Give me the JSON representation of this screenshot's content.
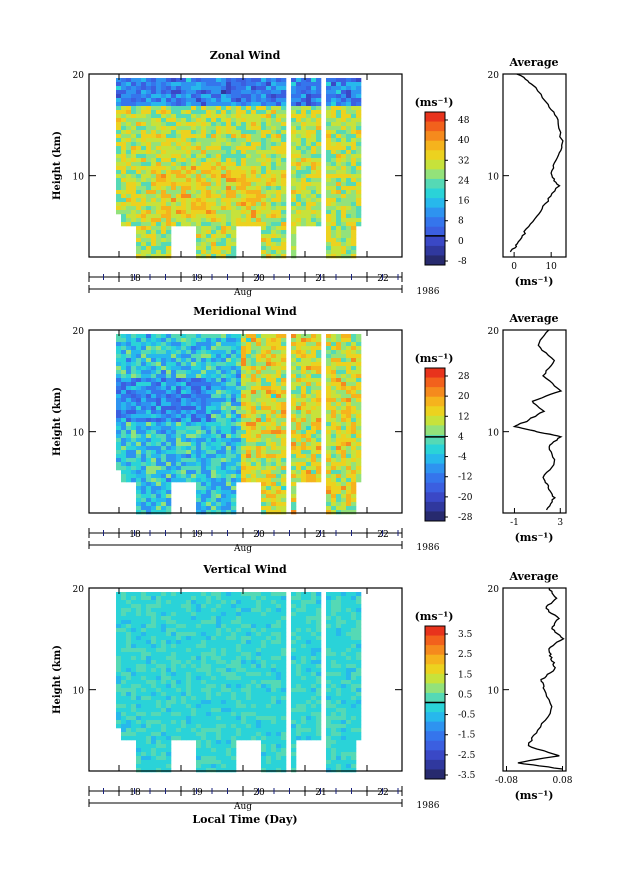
{
  "time_axis": {
    "label": "Aug",
    "year": "1986",
    "ticks": [
      "18",
      "19",
      "20",
      "21",
      "22"
    ]
  },
  "xaxis_title": "Local Time (Day)",
  "average_title": "Average",
  "chart_data": [
    {
      "type": "heatmap",
      "title": "Zonal Wind",
      "ylabel": "Height (km)",
      "ylim": [
        2,
        20
      ],
      "yticks": [
        "20",
        "10"
      ],
      "unit_label": "(ms⁻¹)",
      "colorbar": {
        "ticks": [
          "48",
          "40",
          "32",
          "24",
          "16",
          "8",
          "0",
          "-8"
        ],
        "colors": [
          "#e8331c",
          "#f2611c",
          "#f58a1d",
          "#f5b31d",
          "#ecd21f",
          "#c7e23b",
          "#93e27a",
          "#55d9b5",
          "#2ad3d8",
          "#27b8ec",
          "#2e93f0",
          "#3575ec",
          "#3b5fe0",
          "#3a48c6",
          "#30389e",
          "#272a6e"
        ],
        "zero_frac": 0.81
      },
      "base_value": 0.36,
      "variability": 0.12,
      "top_dark": true,
      "average_profile": {
        "x": [
          1,
          5,
          9,
          12,
          13,
          11,
          10,
          12,
          9,
          6,
          3,
          1,
          -1
        ],
        "y": [
          20,
          19,
          17,
          15.5,
          13,
          11.5,
          10,
          9,
          7.5,
          6,
          4.5,
          3.3,
          2.5
        ],
        "xticks": [
          "0",
          "10"
        ],
        "xlim": [
          -3,
          14
        ]
      }
    },
    {
      "type": "heatmap",
      "title": "Meridional Wind",
      "ylabel": "Height (km)",
      "ylim": [
        2,
        20
      ],
      "yticks": [
        "20",
        "10"
      ],
      "unit_label": "(ms⁻¹)",
      "colorbar": {
        "ticks": [
          "28",
          "20",
          "12",
          "4",
          "-4",
          "-12",
          "-20",
          "-28"
        ],
        "colors": [
          "#e8331c",
          "#f2611c",
          "#f58a1d",
          "#f5b31d",
          "#ecd21f",
          "#c7e23b",
          "#93e27a",
          "#55d9b5",
          "#2ad3d8",
          "#27b8ec",
          "#2e93f0",
          "#3575ec",
          "#3b5fe0",
          "#3a48c6",
          "#30389e",
          "#272a6e"
        ],
        "zero_frac": 0.45
      },
      "base_value": 0.55,
      "variability": 0.14,
      "top_dark": false,
      "east_warm": true,
      "average_profile": {
        "x": [
          2,
          1,
          2.5,
          1.5,
          3,
          0.5,
          1.5,
          0,
          -1,
          1,
          3,
          2,
          2.5,
          1.5,
          2,
          2.5,
          1.8
        ],
        "y": [
          20,
          18.5,
          17,
          15.5,
          14,
          13,
          12,
          11,
          10.5,
          10,
          9.5,
          8.5,
          7,
          5.5,
          4.5,
          3.5,
          2.3
        ],
        "xticks": [
          "-1",
          "3"
        ],
        "xlim": [
          -2,
          3.5
        ]
      }
    },
    {
      "type": "heatmap",
      "title": "Vertical Wind",
      "ylabel": "Height (km)",
      "ylim": [
        2,
        20
      ],
      "yticks": [
        "20",
        "10"
      ],
      "unit_label": "(ms⁻¹)",
      "colorbar": {
        "ticks": [
          "3.5",
          "2.5",
          "1.5",
          "0.5",
          "-0.5",
          "-1.5",
          "-2.5",
          "-3.5"
        ],
        "colors": [
          "#e8331c",
          "#f2611c",
          "#f58a1d",
          "#f5b31d",
          "#ecd21f",
          "#c7e23b",
          "#93e27a",
          "#55d9b5",
          "#2ad3d8",
          "#27b8ec",
          "#2e93f0",
          "#3575ec",
          "#3b5fe0",
          "#3a48c6",
          "#30389e",
          "#272a6e"
        ],
        "zero_frac": 0.5
      },
      "base_value": 0.52,
      "variability": 0.05,
      "top_dark": false,
      "average_profile": {
        "x": [
          0.04,
          0.06,
          0.03,
          0.07,
          0.05,
          0.08,
          0.04,
          0.05,
          0.06,
          0.02,
          0.03,
          0.05,
          0.01,
          -0.02,
          0.07,
          -0.05,
          0.08
        ],
        "y": [
          20,
          19,
          18,
          17,
          16,
          15,
          14,
          13,
          12,
          11,
          10,
          8,
          6,
          4.5,
          3.5,
          2.8,
          2.2
        ],
        "xticks": [
          "-0.08",
          "0.08"
        ],
        "xlim": [
          -0.09,
          0.09
        ]
      }
    }
  ]
}
